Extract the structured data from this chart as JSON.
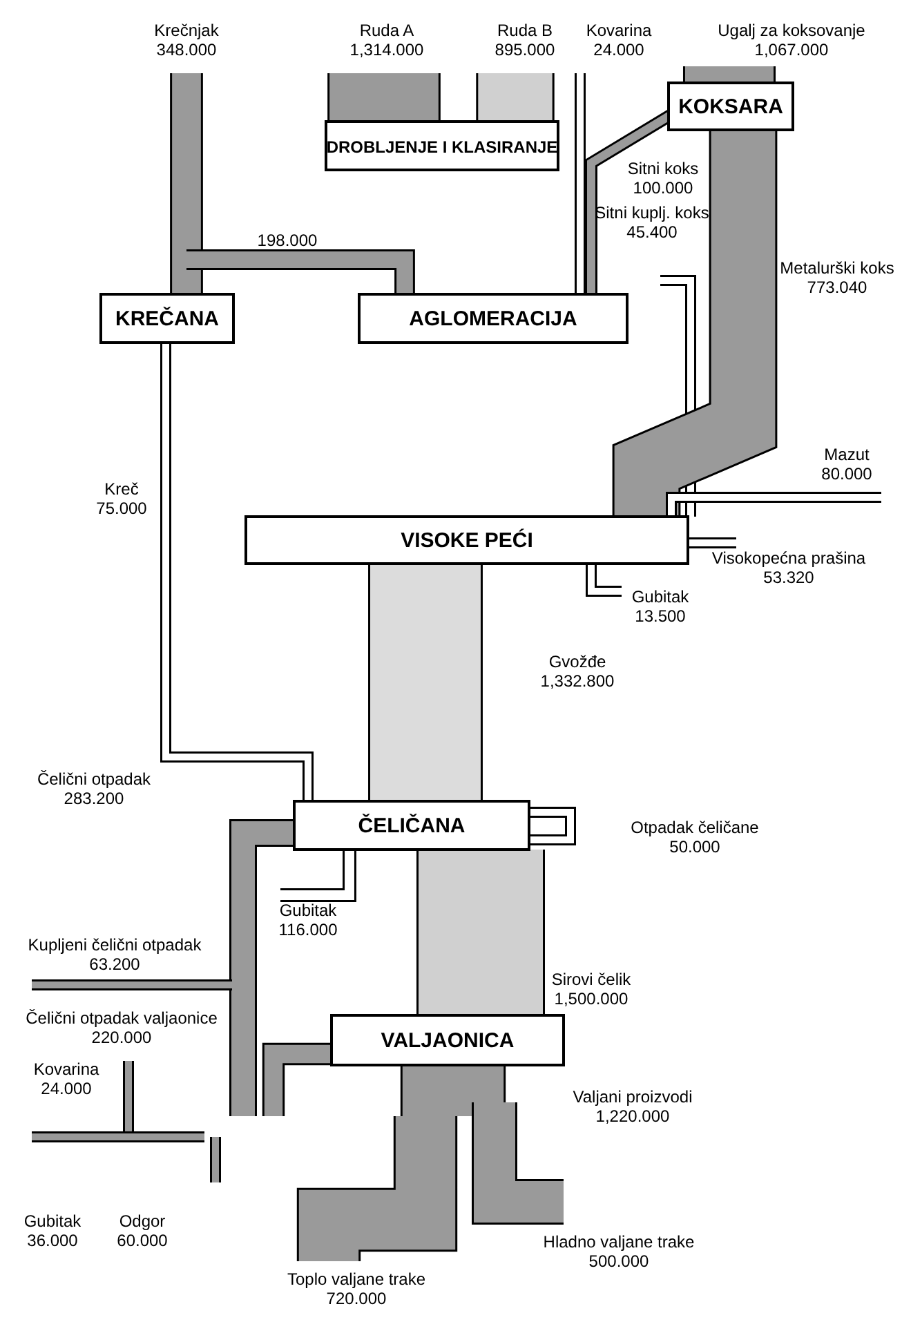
{
  "chart_data": {
    "type": "other",
    "categories": [
      "Krečnjak",
      "Ruda A",
      "Ruda B",
      "Kovarina",
      "Ugalj za koksovanje",
      "Sitni koks",
      null,
      "Sitni kuplj. koks",
      "Metalurški koks",
      "Mazut",
      "Kreč",
      "Visokopećna prašina",
      "Gubitak",
      "Gvožđe",
      "Čelični otpadak",
      "Otpadak čeličane",
      "Gubitak",
      "Kupljeni čelični otpadak",
      "Sirovi čelik",
      "Čelični otpadak valjaonice",
      "Kovarina",
      "Valjani proizvodi",
      "Gubitak",
      "Odgor",
      "Hladno valjane trake",
      "Toplo valjane trake"
    ],
    "values": [
      348,
      1314,
      895,
      24,
      1067,
      100,
      198,
      45.4,
      773.04,
      80,
      75,
      53.32,
      13.5,
      1332.8,
      283.2,
      50,
      116,
      63.2,
      1500,
      220,
      24,
      1220,
      36,
      60,
      500,
      720
    ],
    "value_labels": [
      "348.000",
      "1,314.000",
      "895.000",
      "24.000",
      "1,067.000",
      "100.000",
      "198.000",
      "45.400",
      "773.040",
      "80.000",
      "75.000",
      "53.320",
      "13.500",
      "1,332.800",
      "283.200",
      "50.000",
      "116.000",
      "63.200",
      "1,500.000",
      "220.000",
      "24.000",
      "1,220.000",
      "36.000",
      "60.000",
      "500.000",
      "720.000"
    ],
    "colors": [
      "#9a9a9a",
      "#9a9a9a",
      "#d0d0d0",
      "#ffffff",
      "#9a9a9a",
      "#9a9a9a",
      "#9a9a9a",
      "#ffffff",
      "#9a9a9a",
      "#ffffff",
      "#ffffff",
      "#ffffff",
      "#ffffff",
      "#dcdcdc",
      "#9a9a9a",
      "#ffffff",
      "#ffffff",
      "#9a9a9a",
      "#d0d0d0",
      "#9a9a9a",
      "#9a9a9a",
      "#9a9a9a",
      "#9a9a9a",
      "#9a9a9a",
      "#9a9a9a",
      "#9a9a9a"
    ],
    "annotations": [
      "DROBLJENJE I KLASIRANJE",
      "KOKSARA",
      "KREČANA",
      "AGLOMERACIJA",
      "VISOKE PEĆI",
      "ČELIČANA",
      "VALJAONICA"
    ]
  }
}
